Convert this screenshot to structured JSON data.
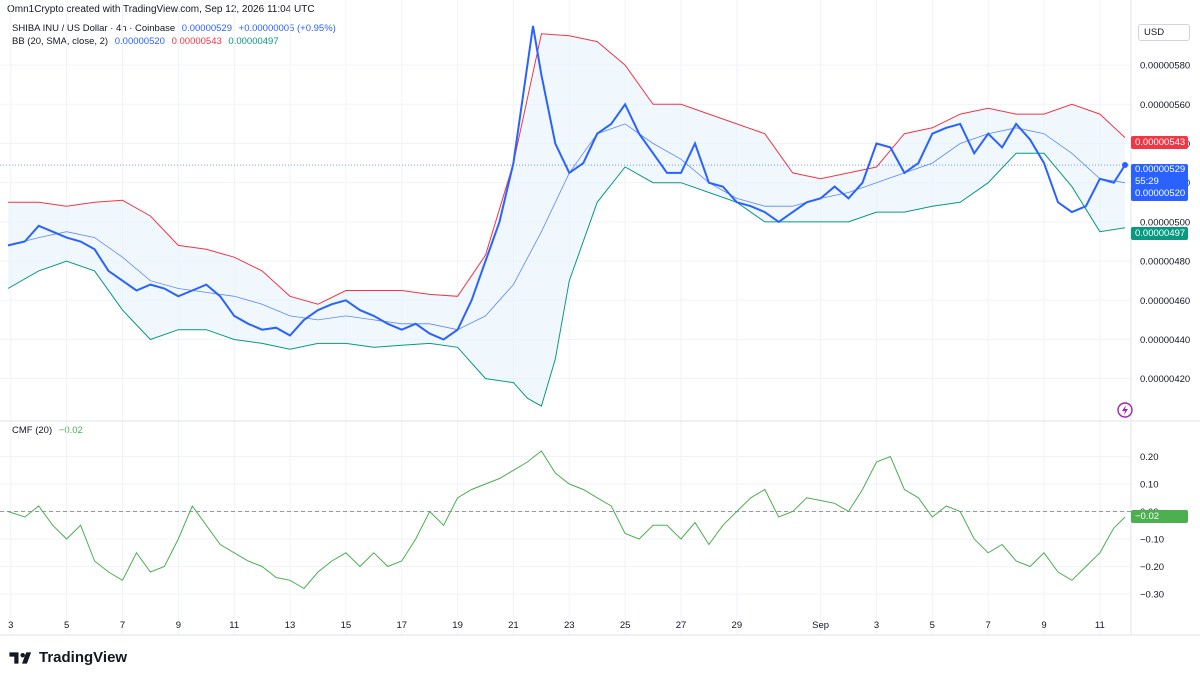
{
  "header": {
    "credit": "Omn1Crypto created with TradingView.com, Sep 12, 2026 11:04 UTC"
  },
  "legend": {
    "symbol": "SHIBA INU / US Dollar · 4h · Coinbase",
    "last": "0.00000529",
    "change": "+0.00000005 (+0.95%)",
    "bb_label": "BB (20, SMA, close, 2)",
    "bb_basis": "0.00000520",
    "bb_upper": "0.00000543",
    "bb_lower": "0.00000497"
  },
  "cmf_legend": {
    "label": "CMF (20)",
    "value": "−0.02"
  },
  "currency_button": "USD",
  "price_tags": {
    "upper": "0.00000543",
    "last": "0.00000529",
    "countdown": "55:29",
    "basis": "0.00000520",
    "lower": "0.00000497"
  },
  "cmf_tag": "−0.02",
  "brand": "TradingView",
  "colors": {
    "price": "#2962ff",
    "upper": "#f23645",
    "lower": "#089981",
    "basis": "#2962ff",
    "band_fill": "#e3f2fd",
    "cmf": "#4caf50"
  },
  "chart_data": [
    {
      "type": "line",
      "title": "SHIBA INU / US Dollar · 4h · Coinbase",
      "ylim": [
        4.04e-06,
        6.02e-06
      ],
      "y_ticks": [
        "0.00000420",
        "0.00000440",
        "0.00000460",
        "0.00000480",
        "0.00000500",
        "0.00000520",
        "0.00000540",
        "0.00000560",
        "0.00000580"
      ],
      "y_tick_values": [
        4.2e-06,
        4.4e-06,
        4.6e-06,
        4.8e-06,
        5e-06,
        5.2e-06,
        5.4e-06,
        5.6e-06,
        5.8e-06
      ],
      "x_ticks": [
        "3",
        "5",
        "7",
        "9",
        "11",
        "13",
        "15",
        "17",
        "19",
        "21",
        "23",
        "25",
        "27",
        "29",
        "Sep",
        "3",
        "5",
        "7",
        "9",
        "11"
      ],
      "x_tick_days": [
        3,
        5,
        7,
        9,
        11,
        13,
        15,
        17,
        19,
        21,
        23,
        25,
        27,
        29,
        32,
        34,
        36,
        38,
        40,
        42
      ],
      "series": [
        {
          "name": "Close",
          "x": [
            2.9,
            3.5,
            4.0,
            4.5,
            5.0,
            5.5,
            6.0,
            6.5,
            7.0,
            7.5,
            8.0,
            8.5,
            9.0,
            9.5,
            10.0,
            10.5,
            11.0,
            11.5,
            12.0,
            12.5,
            13.0,
            13.5,
            14.0,
            14.5,
            15.0,
            15.5,
            16.0,
            16.5,
            17.0,
            17.5,
            18.0,
            18.5,
            19.0,
            19.5,
            20.0,
            20.5,
            21.0,
            21.3,
            21.7,
            22.0,
            22.5,
            23.0,
            23.5,
            24.0,
            24.5,
            25.0,
            25.5,
            26.0,
            26.5,
            27.0,
            27.5,
            28.0,
            28.5,
            29.0,
            29.5,
            30.0,
            30.5,
            31.0,
            31.5,
            32.0,
            32.5,
            33.0,
            33.5,
            34.0,
            34.5,
            35.0,
            35.5,
            36.0,
            36.5,
            37.0,
            37.5,
            38.0,
            38.5,
            39.0,
            39.5,
            40.0,
            40.5,
            41.0,
            41.5,
            42.0,
            42.5,
            42.9
          ],
          "y": [
            4.88e-06,
            4.9e-06,
            4.98e-06,
            4.95e-06,
            4.92e-06,
            4.9e-06,
            4.86e-06,
            4.75e-06,
            4.7e-06,
            4.65e-06,
            4.68e-06,
            4.66e-06,
            4.62e-06,
            4.65e-06,
            4.68e-06,
            4.62e-06,
            4.52e-06,
            4.48e-06,
            4.45e-06,
            4.46e-06,
            4.42e-06,
            4.5e-06,
            4.55e-06,
            4.58e-06,
            4.6e-06,
            4.55e-06,
            4.52e-06,
            4.48e-06,
            4.45e-06,
            4.48e-06,
            4.43e-06,
            4.4e-06,
            4.45e-06,
            4.6e-06,
            4.8e-06,
            5e-06,
            5.3e-06,
            5.6e-06,
            6e-06,
            5.75e-06,
            5.4e-06,
            5.25e-06,
            5.3e-06,
            5.45e-06,
            5.5e-06,
            5.6e-06,
            5.45e-06,
            5.35e-06,
            5.25e-06,
            5.25e-06,
            5.4e-06,
            5.2e-06,
            5.18e-06,
            5.1e-06,
            5.08e-06,
            5.05e-06,
            5e-06,
            5.05e-06,
            5.1e-06,
            5.12e-06,
            5.18e-06,
            5.12e-06,
            5.2e-06,
            5.4e-06,
            5.38e-06,
            5.25e-06,
            5.3e-06,
            5.45e-06,
            5.48e-06,
            5.5e-06,
            5.35e-06,
            5.45e-06,
            5.38e-06,
            5.5e-06,
            5.42e-06,
            5.3e-06,
            5.1e-06,
            5.05e-06,
            5.08e-06,
            5.22e-06,
            5.2e-06,
            5.29e-06
          ]
        },
        {
          "name": "Upper",
          "x": [
            2.9,
            4.0,
            5.0,
            6.0,
            7.0,
            8.0,
            9.0,
            10.0,
            11.0,
            12.0,
            13.0,
            14.0,
            15.0,
            16.0,
            17.0,
            18.0,
            19.0,
            20.0,
            21.0,
            22.0,
            23.0,
            24.0,
            25.0,
            26.0,
            27.0,
            28.0,
            29.0,
            30.0,
            31.0,
            32.0,
            33.0,
            34.0,
            35.0,
            36.0,
            37.0,
            38.0,
            39.0,
            40.0,
            41.0,
            42.0,
            42.9
          ],
          "y": [
            5.1e-06,
            5.1e-06,
            5.08e-06,
            5.1e-06,
            5.11e-06,
            5.03e-06,
            4.88e-06,
            4.86e-06,
            4.82e-06,
            4.75e-06,
            4.62e-06,
            4.58e-06,
            4.65e-06,
            4.65e-06,
            4.65e-06,
            4.63e-06,
            4.62e-06,
            4.83e-06,
            5.3e-06,
            5.96e-06,
            5.95e-06,
            5.92e-06,
            5.8e-06,
            5.6e-06,
            5.6e-06,
            5.55e-06,
            5.5e-06,
            5.45e-06,
            5.25e-06,
            5.22e-06,
            5.25e-06,
            5.28e-06,
            5.45e-06,
            5.48e-06,
            5.55e-06,
            5.58e-06,
            5.55e-06,
            5.55e-06,
            5.6e-06,
            5.55e-06,
            5.43e-06
          ]
        },
        {
          "name": "Basis",
          "x": [
            2.9,
            4.0,
            5.0,
            6.0,
            7.0,
            8.0,
            9.0,
            10.0,
            11.0,
            12.0,
            13.0,
            14.0,
            15.0,
            16.0,
            17.0,
            18.0,
            19.0,
            20.0,
            21.0,
            22.0,
            23.0,
            24.0,
            25.0,
            26.0,
            27.0,
            28.0,
            29.0,
            30.0,
            31.0,
            32.0,
            33.0,
            34.0,
            35.0,
            36.0,
            37.0,
            38.0,
            39.0,
            40.0,
            41.0,
            42.0,
            42.9
          ],
          "y": [
            4.88e-06,
            4.92e-06,
            4.95e-06,
            4.92e-06,
            4.82e-06,
            4.7e-06,
            4.66e-06,
            4.64e-06,
            4.62e-06,
            4.58e-06,
            4.52e-06,
            4.5e-06,
            4.52e-06,
            4.5e-06,
            4.48e-06,
            4.48e-06,
            4.45e-06,
            4.52e-06,
            4.68e-06,
            4.95e-06,
            5.25e-06,
            5.45e-06,
            5.5e-06,
            5.4e-06,
            5.32e-06,
            5.2e-06,
            5.12e-06,
            5.08e-06,
            5.08e-06,
            5.12e-06,
            5.15e-06,
            5.2e-06,
            5.25e-06,
            5.3e-06,
            5.4e-06,
            5.45e-06,
            5.48e-06,
            5.45e-06,
            5.35e-06,
            5.22e-06,
            5.2e-06
          ]
        },
        {
          "name": "Lower",
          "x": [
            2.9,
            4.0,
            5.0,
            6.0,
            7.0,
            8.0,
            9.0,
            10.0,
            11.0,
            12.0,
            13.0,
            14.0,
            15.0,
            16.0,
            17.0,
            18.0,
            19.0,
            20.0,
            21.0,
            21.5,
            22.0,
            22.5,
            23.0,
            24.0,
            25.0,
            26.0,
            27.0,
            28.0,
            29.0,
            30.0,
            31.0,
            32.0,
            33.0,
            34.0,
            35.0,
            36.0,
            37.0,
            38.0,
            39.0,
            40.0,
            41.0,
            42.0,
            42.9
          ],
          "y": [
            4.66e-06,
            4.75e-06,
            4.8e-06,
            4.75e-06,
            4.55e-06,
            4.4e-06,
            4.45e-06,
            4.45e-06,
            4.4e-06,
            4.38e-06,
            4.35e-06,
            4.38e-06,
            4.38e-06,
            4.36e-06,
            4.37e-06,
            4.38e-06,
            4.36e-06,
            4.2e-06,
            4.18e-06,
            4.1e-06,
            4.06e-06,
            4.3e-06,
            4.7e-06,
            5.1e-06,
            5.28e-06,
            5.2e-06,
            5.2e-06,
            5.15e-06,
            5.1e-06,
            5e-06,
            5e-06,
            5e-06,
            5e-06,
            5.05e-06,
            5.05e-06,
            5.08e-06,
            5.1e-06,
            5.2e-06,
            5.35e-06,
            5.35e-06,
            5.18e-06,
            4.95e-06,
            4.97e-06
          ]
        }
      ]
    },
    {
      "type": "line",
      "title": "CMF (20)",
      "ylim": [
        -0.34,
        0.26
      ],
      "y_ticks": [
        "0.20",
        "0.10",
        "0.00",
        "−0.10",
        "−0.20",
        "−0.30"
      ],
      "y_tick_values": [
        0.2,
        0.1,
        0.0,
        -0.1,
        -0.2,
        -0.3
      ],
      "series": [
        {
          "name": "CMF",
          "x": [
            2.9,
            3.5,
            4.0,
            4.5,
            5.0,
            5.5,
            6.0,
            6.5,
            7.0,
            7.5,
            8.0,
            8.5,
            9.0,
            9.5,
            10.0,
            10.5,
            11.0,
            11.5,
            12.0,
            12.5,
            13.0,
            13.5,
            14.0,
            14.5,
            15.0,
            15.5,
            16.0,
            16.5,
            17.0,
            17.5,
            18.0,
            18.5,
            19.0,
            19.5,
            20.0,
            20.5,
            21.0,
            21.5,
            22.0,
            22.5,
            23.0,
            23.5,
            24.0,
            24.5,
            25.0,
            25.5,
            26.0,
            26.5,
            27.0,
            27.5,
            28.0,
            28.5,
            29.0,
            29.5,
            30.0,
            30.5,
            31.0,
            31.5,
            32.0,
            32.5,
            33.0,
            33.5,
            34.0,
            34.5,
            35.0,
            35.5,
            36.0,
            36.5,
            37.0,
            37.5,
            38.0,
            38.5,
            39.0,
            39.5,
            40.0,
            40.5,
            41.0,
            41.5,
            42.0,
            42.5,
            42.9
          ],
          "y": [
            0.0,
            -0.02,
            0.02,
            -0.05,
            -0.1,
            -0.05,
            -0.18,
            -0.22,
            -0.25,
            -0.15,
            -0.22,
            -0.2,
            -0.1,
            0.02,
            -0.05,
            -0.12,
            -0.15,
            -0.18,
            -0.2,
            -0.24,
            -0.25,
            -0.28,
            -0.22,
            -0.18,
            -0.15,
            -0.2,
            -0.15,
            -0.2,
            -0.18,
            -0.1,
            0.0,
            -0.05,
            0.05,
            0.08,
            0.1,
            0.12,
            0.15,
            0.18,
            0.22,
            0.14,
            0.1,
            0.08,
            0.05,
            0.02,
            -0.08,
            -0.1,
            -0.05,
            -0.05,
            -0.1,
            -0.04,
            -0.12,
            -0.05,
            0.0,
            0.05,
            0.08,
            -0.02,
            0.0,
            0.05,
            0.04,
            0.03,
            0.0,
            0.08,
            0.18,
            0.2,
            0.08,
            0.05,
            -0.02,
            0.02,
            0.0,
            -0.1,
            -0.15,
            -0.12,
            -0.18,
            -0.2,
            -0.15,
            -0.22,
            -0.25,
            -0.2,
            -0.15,
            -0.06,
            -0.02
          ]
        }
      ]
    }
  ]
}
